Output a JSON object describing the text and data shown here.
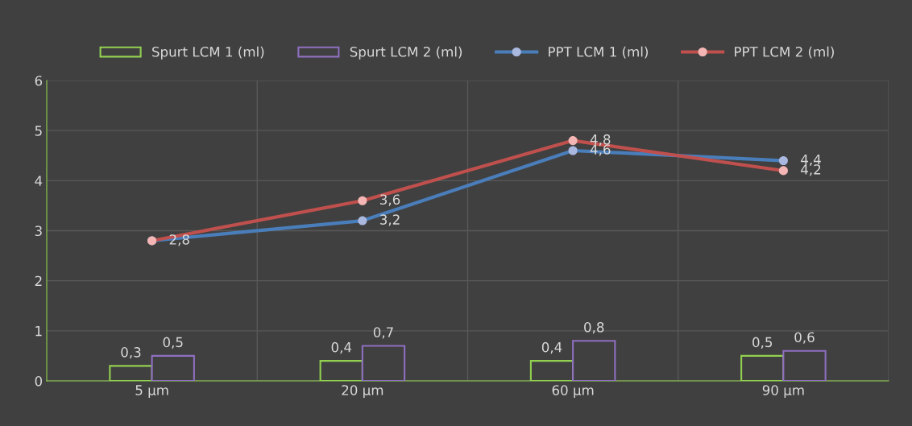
{
  "chart_data": {
    "type": "bar",
    "categories": [
      "5 µm",
      "20 µm",
      "60 µm",
      "90 µm"
    ],
    "series": [
      {
        "name": "Spurt LCM 1 (ml)",
        "color": "#92d050",
        "values": [
          0.3,
          0.4,
          0.4,
          0.5
        ],
        "value_labels": [
          "0,3",
          "0,4",
          "0,4",
          "0,5"
        ]
      },
      {
        "name": "Spurt LCM 2 (ml)",
        "color": "#8e6fc0",
        "values": [
          0.5,
          0.7,
          0.8,
          0.6
        ],
        "value_labels": [
          "0,5",
          "0,7",
          "0,8",
          "0,6"
        ]
      },
      {
        "name": "PPT LCM 1 (ml)",
        "type": "line",
        "color": "#4a7ebb",
        "values": [
          2.8,
          3.2,
          4.6,
          4.4
        ],
        "value_labels": [
          "2,8",
          "3,2",
          "4,6",
          "4,4"
        ]
      },
      {
        "name": "PPT LCM 2 (ml)",
        "type": "line",
        "color": "#c0504d",
        "values": [
          2.8,
          3.6,
          4.8,
          4.2
        ],
        "value_labels": [
          null,
          "3,6",
          "4,8",
          "4,2"
        ]
      }
    ],
    "ylim": [
      0,
      6
    ],
    "yticks": [
      0,
      1,
      2,
      3,
      4,
      5,
      6
    ],
    "grid": true,
    "legend": "top",
    "marker": "circle"
  }
}
